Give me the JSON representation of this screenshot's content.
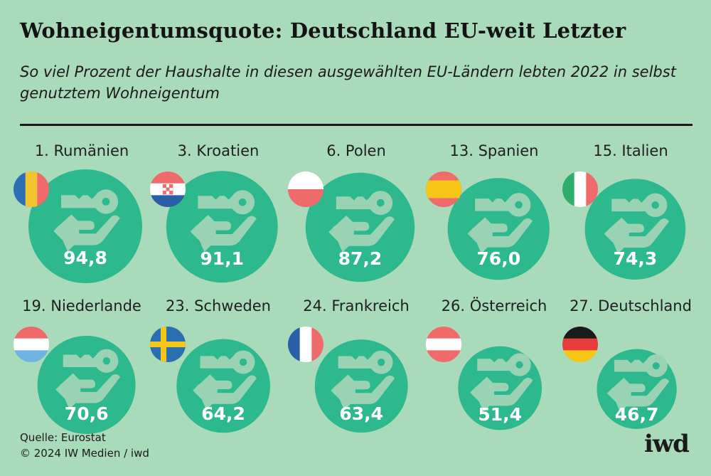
{
  "title": "Wohneigentumsquote: Deutschland EU-weit Letzter",
  "subtitle": "So viel Prozent der Haushalte in diesen ausgewählten EU-Ländern lebten 2022 in selbst genutztem Wohneigentum",
  "source": "Quelle: Eurostat",
  "copyright": "© 2024 IW Medien / iwd",
  "logo": "iwd",
  "colors": {
    "background": "#a9dab9",
    "circle": "#2db98d",
    "icon": "#9ad3b4"
  },
  "chart_data": {
    "type": "proportional-circles",
    "unit": "%",
    "year": "2022",
    "items": [
      {
        "label": "1. Rumänien",
        "value": 94.8,
        "value_label": "94,8",
        "flag": "ro-flag"
      },
      {
        "label": "3. Kroatien",
        "value": 91.1,
        "value_label": "91,1",
        "flag": "hr-flag"
      },
      {
        "label": "6. Polen",
        "value": 87.2,
        "value_label": "87,2",
        "flag": "pl-flag"
      },
      {
        "label": "13. Spanien",
        "value": 76.0,
        "value_label": "76,0",
        "flag": "es-flag"
      },
      {
        "label": "15. Italien",
        "value": 74.3,
        "value_label": "74,3",
        "flag": "it-flag"
      },
      {
        "label": "19. Niederlande",
        "value": 70.6,
        "value_label": "70,6",
        "flag": "nl-flag"
      },
      {
        "label": "23. Schweden",
        "value": 64.2,
        "value_label": "64,2",
        "flag": "se-flag"
      },
      {
        "label": "24. Frankreich",
        "value": 63.4,
        "value_label": "63,4",
        "flag": "fr-flag"
      },
      {
        "label": "26. Österreich",
        "value": 51.4,
        "value_label": "51,4",
        "flag": "at-flag"
      },
      {
        "label": "27. Deutschland",
        "value": 46.7,
        "value_label": "46,7",
        "flag": "de-flag"
      }
    ]
  }
}
